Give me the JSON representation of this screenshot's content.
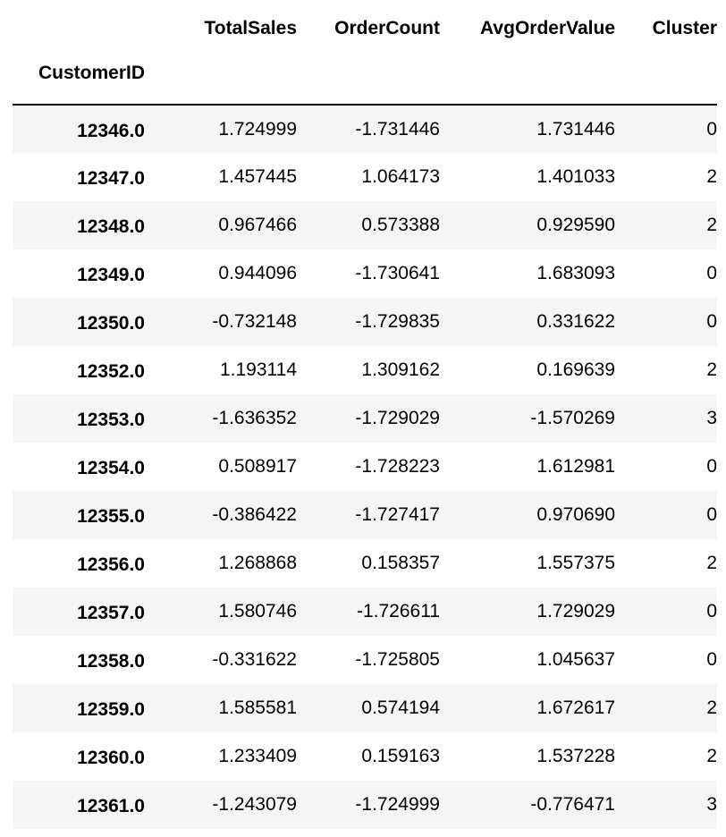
{
  "table": {
    "index_name": "CustomerID",
    "columns": [
      "TotalSales",
      "OrderCount",
      "AvgOrderValue",
      "Cluster"
    ],
    "rows": [
      {
        "index": "12346.0",
        "TotalSales": "1.724999",
        "OrderCount": "-1.731446",
        "AvgOrderValue": "1.731446",
        "Cluster": "0"
      },
      {
        "index": "12347.0",
        "TotalSales": "1.457445",
        "OrderCount": "1.064173",
        "AvgOrderValue": "1.401033",
        "Cluster": "2"
      },
      {
        "index": "12348.0",
        "TotalSales": "0.967466",
        "OrderCount": "0.573388",
        "AvgOrderValue": "0.929590",
        "Cluster": "2"
      },
      {
        "index": "12349.0",
        "TotalSales": "0.944096",
        "OrderCount": "-1.730641",
        "AvgOrderValue": "1.683093",
        "Cluster": "0"
      },
      {
        "index": "12350.0",
        "TotalSales": "-0.732148",
        "OrderCount": "-1.729835",
        "AvgOrderValue": "0.331622",
        "Cluster": "0"
      },
      {
        "index": "12352.0",
        "TotalSales": "1.193114",
        "OrderCount": "1.309162",
        "AvgOrderValue": "0.169639",
        "Cluster": "2"
      },
      {
        "index": "12353.0",
        "TotalSales": "-1.636352",
        "OrderCount": "-1.729029",
        "AvgOrderValue": "-1.570269",
        "Cluster": "3"
      },
      {
        "index": "12354.0",
        "TotalSales": "0.508917",
        "OrderCount": "-1.728223",
        "AvgOrderValue": "1.612981",
        "Cluster": "0"
      },
      {
        "index": "12355.0",
        "TotalSales": "-0.386422",
        "OrderCount": "-1.727417",
        "AvgOrderValue": "0.970690",
        "Cluster": "0"
      },
      {
        "index": "12356.0",
        "TotalSales": "1.268868",
        "OrderCount": "0.158357",
        "AvgOrderValue": "1.557375",
        "Cluster": "2"
      },
      {
        "index": "12357.0",
        "TotalSales": "1.580746",
        "OrderCount": "-1.726611",
        "AvgOrderValue": "1.729029",
        "Cluster": "0"
      },
      {
        "index": "12358.0",
        "TotalSales": "-0.331622",
        "OrderCount": "-1.725805",
        "AvgOrderValue": "1.045637",
        "Cluster": "0"
      },
      {
        "index": "12359.0",
        "TotalSales": "1.585581",
        "OrderCount": "0.574194",
        "AvgOrderValue": "1.672617",
        "Cluster": "2"
      },
      {
        "index": "12360.0",
        "TotalSales": "1.233409",
        "OrderCount": "0.159163",
        "AvgOrderValue": "1.537228",
        "Cluster": "2"
      },
      {
        "index": "12361.0",
        "TotalSales": "-1.243079",
        "OrderCount": "-1.724999",
        "AvgOrderValue": "-0.776471",
        "Cluster": "3"
      }
    ]
  },
  "colors": {
    "stripe": "#f5f5f5",
    "background": "#ffffff",
    "text": "#000000",
    "rule": "#000000"
  }
}
